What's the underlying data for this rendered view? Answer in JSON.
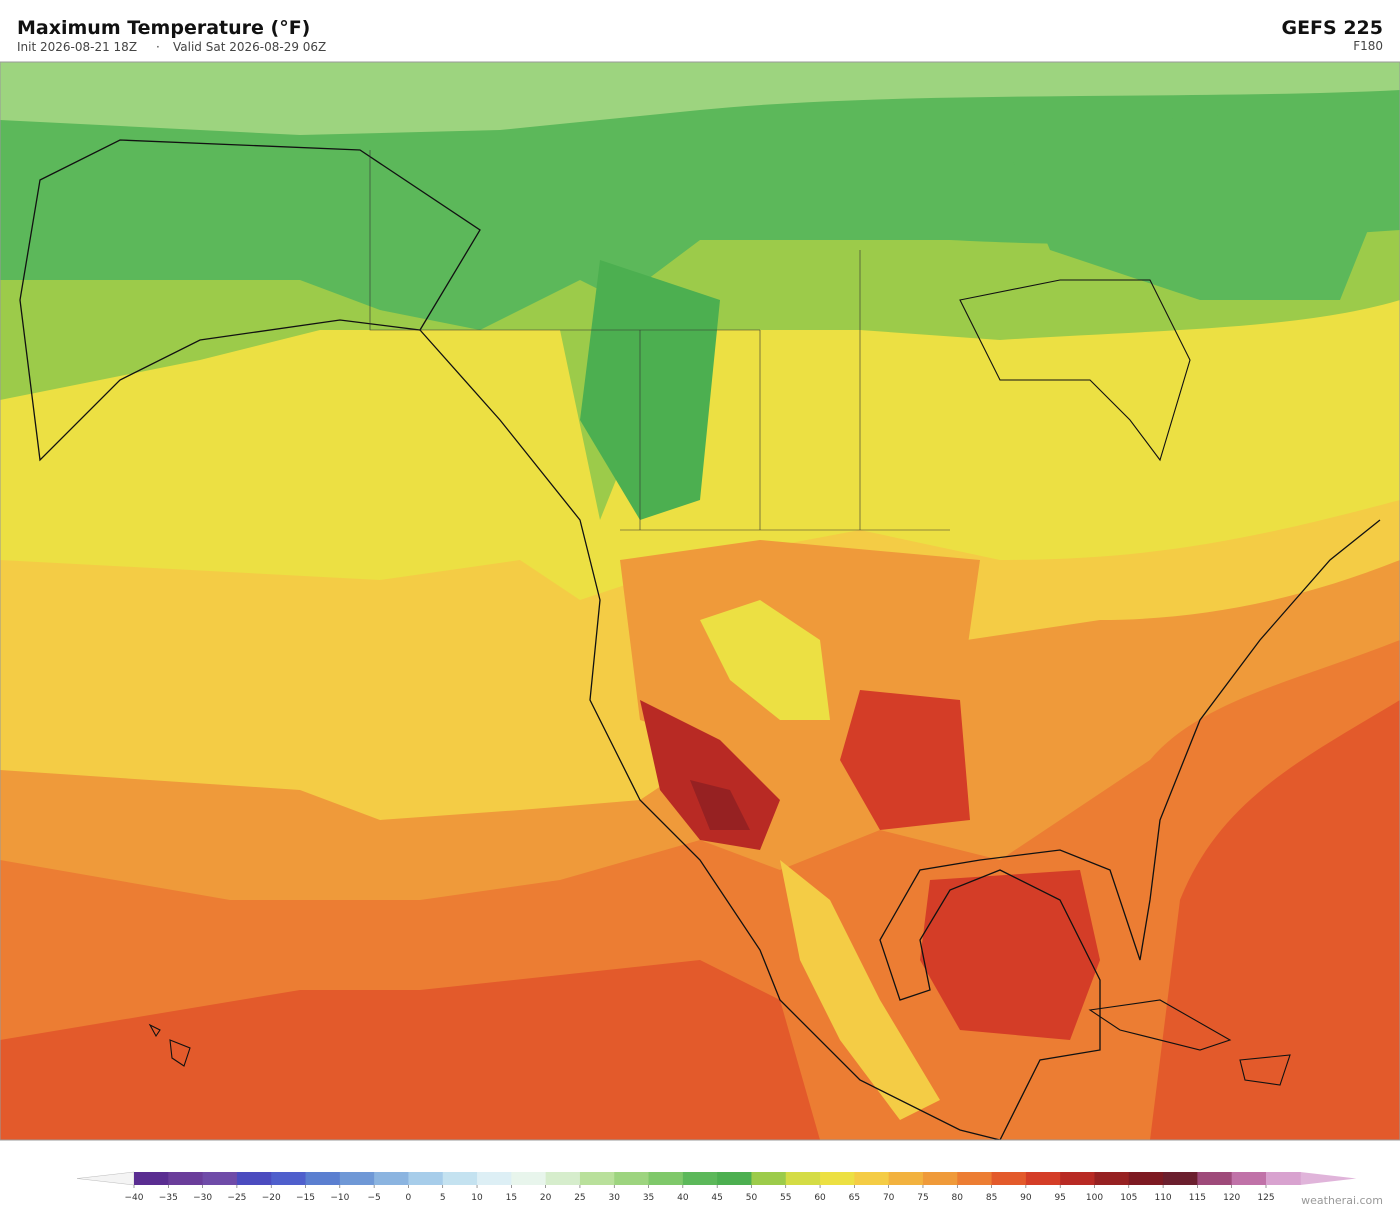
{
  "header": {
    "title": "Maximum Temperature  (°F)",
    "init": "Init 2026-08-21 18Z",
    "separator": "·",
    "valid": "Valid Sat 2026-08-29 06Z",
    "model": "GEFS  225",
    "step": "F180"
  },
  "colorbar": {
    "ticks": [
      {
        "value": -40,
        "label": "−40"
      },
      {
        "value": -35,
        "label": "−35"
      },
      {
        "value": -30,
        "label": "−30"
      },
      {
        "value": -25,
        "label": "−25"
      },
      {
        "value": -20,
        "label": "−20"
      },
      {
        "value": -15,
        "label": "−15"
      },
      {
        "value": -10,
        "label": "−10"
      },
      {
        "value": -5,
        "label": "−5"
      },
      0,
      5,
      10,
      15,
      20,
      25,
      30,
      35,
      40,
      45,
      50,
      55,
      60,
      65,
      70,
      75,
      80,
      85,
      90,
      95,
      100,
      105,
      110,
      115,
      120,
      125
    ],
    "colors": [
      "#5a2d91",
      "#6a3d9a",
      "#6f4ba8",
      "#4b4bbf",
      "#4f5fcc",
      "#5b7fd0",
      "#6f98d6",
      "#8bb4e0",
      "#a7cdea",
      "#c4e2f0",
      "#ddeff5",
      "#e8f5ec",
      "#d6edcc",
      "#b9e09b",
      "#9dd47f",
      "#7fc86a",
      "#5cb85a",
      "#4caf50",
      "#9ccb4a",
      "#d4dc45",
      "#ece043",
      "#f4cc45",
      "#f2b23f",
      "#ef9a3a",
      "#ec7d33",
      "#e35a2b",
      "#d43d27",
      "#b82a24",
      "#962122",
      "#7d1a22",
      "#6b1f2e",
      "#9e4a7a",
      "#c072a8",
      "#d8a2cf"
    ],
    "under_color": "#f4f4f4",
    "over_color": "#e0b4da"
  },
  "credit": "weatherai.com"
}
